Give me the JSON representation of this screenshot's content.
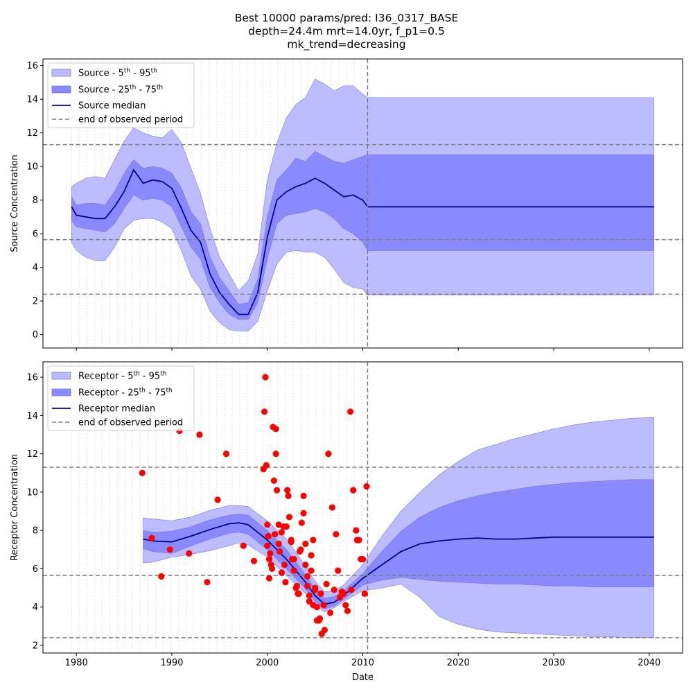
{
  "figure": {
    "title_lines": [
      "Best 10000 params/pred: I36_0317_BASE",
      "depth=24.4m mrt=14.0yr, f_p1=0.5",
      "mk_trend=decreasing"
    ]
  },
  "colors": {
    "band_outer": "#bcbcfe",
    "band_inner": "#8a8afe",
    "band_edge": "#6f6fe0",
    "median": "#00008b",
    "reference": "#7f7f7f",
    "observation": "#ff0000",
    "vertical_grid": "#d9d9d9"
  },
  "chart_data": [
    {
      "type": "area",
      "name": "source-panel",
      "xlabel": "",
      "ylabel": "Source Concentration",
      "xlim": [
        1976.5,
        2043.5
      ],
      "ylim": [
        -0.8,
        16.4
      ],
      "xticks": [
        1980,
        1990,
        2000,
        2010,
        2020,
        2030,
        2040
      ],
      "xtick_labels": [],
      "yticks": [
        0,
        2,
        4,
        6,
        8,
        10,
        12,
        14,
        16
      ],
      "ytick_labels": [
        "0",
        "2",
        "4",
        "6",
        "8",
        "10",
        "12",
        "14",
        "16"
      ],
      "vertical_grid": "dotted, about every 0.8 years from 1979.5 to 2010.5",
      "horizontal_reference_lines": [
        11.3,
        5.65,
        2.4
      ],
      "end_of_observed_period": 2010.5,
      "legend": {
        "placement": "upper-left",
        "entries": [
          {
            "base": "Source - 5",
            "sup1": "th",
            "mid": " - 95",
            "sup2": "th"
          },
          {
            "base": "Source - 25",
            "sup1": "th",
            "mid": " - 75",
            "sup2": "th"
          },
          {
            "base": "Source median",
            "sup1": "",
            "mid": "",
            "sup2": ""
          },
          {
            "base": "end of observed period",
            "sup1": "",
            "mid": "",
            "sup2": ""
          }
        ]
      },
      "x": [
        1979.5,
        1980,
        1981,
        1982,
        1983,
        1984,
        1985,
        1986,
        1987,
        1988,
        1989,
        1990,
        1991,
        1992,
        1993,
        1994,
        1995,
        1996,
        1997,
        1998,
        1999,
        2000,
        2001,
        2002,
        2003,
        2004,
        2005,
        2006,
        2007,
        2008,
        2009,
        2010,
        2010.5,
        2040.5
      ],
      "series": [
        {
          "name": "Source median",
          "values": [
            7.6,
            7.1,
            7.0,
            6.9,
            6.9,
            7.6,
            8.5,
            9.8,
            9.0,
            9.2,
            9.1,
            8.7,
            7.5,
            6.2,
            5.5,
            3.6,
            2.5,
            1.8,
            1.2,
            1.2,
            2.5,
            5.8,
            8.0,
            8.5,
            8.8,
            9.0,
            9.3,
            9.0,
            8.6,
            8.2,
            8.3,
            8.0,
            7.6,
            7.6
          ]
        },
        {
          "name": "Source - 25th - 75th lower",
          "values": [
            6.8,
            6.4,
            6.3,
            6.2,
            6.1,
            6.6,
            7.5,
            8.3,
            8.0,
            8.1,
            8.0,
            7.6,
            6.4,
            5.2,
            4.5,
            2.8,
            1.9,
            1.2,
            0.9,
            0.9,
            1.9,
            4.5,
            6.6,
            7.1,
            7.2,
            7.3,
            7.5,
            7.3,
            6.9,
            6.3,
            6.0,
            5.5,
            5.0,
            5.0
          ]
        },
        {
          "name": "Source - 25th - 75th upper",
          "values": [
            8.2,
            7.7,
            7.8,
            7.8,
            7.7,
            8.5,
            9.6,
            10.4,
            9.9,
            10.0,
            9.9,
            9.6,
            8.7,
            7.3,
            6.6,
            4.6,
            3.4,
            2.6,
            1.8,
            1.9,
            3.3,
            7.0,
            9.2,
            9.8,
            10.5,
            10.3,
            10.9,
            10.6,
            10.3,
            10.2,
            10.4,
            10.6,
            10.7,
            10.7
          ]
        },
        {
          "name": "Source - 5th - 95th lower",
          "values": [
            5.5,
            5.0,
            4.6,
            4.4,
            4.4,
            5.2,
            6.3,
            6.8,
            6.9,
            6.9,
            6.7,
            6.3,
            5.0,
            3.5,
            2.7,
            1.4,
            0.7,
            0.3,
            0.2,
            0.2,
            0.8,
            2.6,
            4.2,
            4.9,
            5.0,
            4.9,
            4.9,
            4.6,
            3.9,
            3.1,
            2.8,
            2.7,
            2.35,
            2.35
          ]
        },
        {
          "name": "Source - 5th - 95th upper",
          "values": [
            8.8,
            9.0,
            9.3,
            9.4,
            9.3,
            10.4,
            11.5,
            12.3,
            12.0,
            11.8,
            11.7,
            12.2,
            11.4,
            9.9,
            8.4,
            6.3,
            4.6,
            3.6,
            2.6,
            3.2,
            4.8,
            9.2,
            11.4,
            12.9,
            13.7,
            14.1,
            15.2,
            14.9,
            14.5,
            14.8,
            14.8,
            14.3,
            14.1,
            14.1
          ]
        }
      ]
    },
    {
      "type": "area",
      "name": "receptor-panel",
      "xlabel": "Date",
      "ylabel": "Receptor Concentration",
      "xlim": [
        1976.5,
        2043.5
      ],
      "ylim": [
        1.6,
        16.8
      ],
      "xticks": [
        1980,
        1990,
        2000,
        2010,
        2020,
        2030,
        2040
      ],
      "xtick_labels": [
        "1980",
        "1990",
        "2000",
        "2010",
        "2020",
        "2030",
        "2040"
      ],
      "yticks": [
        2,
        4,
        6,
        8,
        10,
        12,
        14,
        16
      ],
      "ytick_labels": [
        "2",
        "4",
        "6",
        "8",
        "10",
        "12",
        "14",
        "16"
      ],
      "vertical_grid": "dotted, about every 0.8 years from 1979.5 to 2010.5",
      "horizontal_reference_lines": [
        11.3,
        5.65,
        2.4
      ],
      "end_of_observed_period": 2010.5,
      "legend": {
        "placement": "upper-left",
        "entries": [
          {
            "base": "Receptor - 5",
            "sup1": "th",
            "mid": " - 95",
            "sup2": "th"
          },
          {
            "base": "Receptor - 25",
            "sup1": "th",
            "mid": " - 75",
            "sup2": "th"
          },
          {
            "base": "Receptor median",
            "sup1": "",
            "mid": "",
            "sup2": ""
          },
          {
            "base": "end of observed period",
            "sup1": "",
            "mid": "",
            "sup2": ""
          }
        ]
      },
      "x": [
        1987,
        1988,
        1990,
        1992,
        1994,
        1996,
        1997,
        1998,
        2000,
        2002,
        2004,
        2005,
        2006,
        2007,
        2008,
        2010,
        2012,
        2014,
        2016,
        2018,
        2020,
        2022,
        2024,
        2026,
        2028,
        2030,
        2032,
        2034,
        2036,
        2038,
        2040.5
      ],
      "series": [
        {
          "name": "Receptor median",
          "values": [
            7.55,
            7.45,
            7.4,
            7.7,
            8.05,
            8.35,
            8.4,
            8.3,
            7.5,
            6.5,
            5.3,
            4.6,
            4.15,
            4.25,
            4.6,
            5.5,
            6.2,
            6.9,
            7.3,
            7.45,
            7.55,
            7.6,
            7.55,
            7.55,
            7.6,
            7.65,
            7.65,
            7.65,
            7.65,
            7.65,
            7.65
          ]
        },
        {
          "name": "Receptor - 25th - 75th lower",
          "values": [
            7.05,
            6.9,
            6.8,
            7.2,
            7.55,
            7.85,
            7.9,
            7.8,
            7.0,
            6.0,
            4.95,
            4.3,
            3.9,
            4.05,
            4.4,
            5.15,
            5.4,
            5.55,
            5.45,
            5.35,
            5.3,
            5.25,
            5.2,
            5.2,
            5.15,
            5.1,
            5.1,
            5.05,
            5.05,
            5.05,
            5.05
          ]
        },
        {
          "name": "Receptor - 25th - 75th upper",
          "values": [
            8.0,
            7.9,
            7.95,
            8.2,
            8.55,
            8.8,
            8.85,
            8.8,
            8.0,
            7.0,
            5.7,
            4.95,
            4.45,
            4.55,
            4.85,
            5.75,
            6.9,
            7.95,
            8.7,
            9.2,
            9.55,
            9.8,
            10.0,
            10.15,
            10.3,
            10.4,
            10.5,
            10.55,
            10.6,
            10.65,
            10.65
          ]
        },
        {
          "name": "Receptor - 5th - 95th lower",
          "values": [
            6.3,
            6.35,
            6.6,
            6.75,
            6.95,
            7.2,
            7.35,
            7.25,
            6.6,
            5.65,
            4.7,
            4.1,
            3.75,
            3.95,
            4.3,
            4.85,
            5.0,
            5.2,
            4.5,
            3.5,
            3.1,
            2.85,
            2.7,
            2.65,
            2.6,
            2.55,
            2.5,
            2.45,
            2.45,
            2.4,
            2.4
          ]
        },
        {
          "name": "Receptor - 5th - 95th upper",
          "values": [
            8.65,
            8.6,
            8.5,
            8.7,
            9.05,
            9.3,
            9.3,
            9.25,
            8.5,
            7.55,
            6.15,
            5.35,
            4.8,
            4.85,
            5.15,
            6.2,
            7.7,
            9.0,
            10.0,
            10.9,
            11.6,
            12.2,
            12.5,
            12.8,
            13.05,
            13.3,
            13.5,
            13.65,
            13.75,
            13.85,
            13.9
          ]
        }
      ],
      "observations": {
        "x": [
          1986.9,
          1987.9,
          1988.9,
          1989.8,
          1990.8,
          1991.8,
          1992.9,
          1993.7,
          1994.8,
          1995.7,
          1997.5,
          1998.6,
          1999.6,
          1999.7,
          1999.8,
          1999.9,
          2000.0,
          2000.1,
          2000.2,
          2000.3,
          2000.5,
          2000.7,
          2000.8,
          2000.9,
          2001.0,
          2001.2,
          2001.3,
          2001.5,
          2001.7,
          2001.9,
          2002.1,
          2002.3,
          2002.5,
          2002.6,
          2002.8,
          2003.0,
          2003.2,
          2003.4,
          2003.6,
          2003.8,
          2004.0,
          2004.2,
          2004.4,
          2004.6,
          2004.8,
          2005.0,
          2005.2,
          2005.5,
          2005.7,
          2006.0,
          2006.4,
          2006.8,
          2007.2,
          2007.6,
          2008.0,
          2008.4,
          2008.7,
          2009.0,
          2009.3,
          2009.6,
          2010.0,
          2010.4,
          2000.0,
          2000.2,
          2000.4,
          2000.6,
          2000.9,
          2001.2,
          2001.5,
          2001.8,
          2002.0,
          2002.2,
          2002.5,
          2002.8,
          2003.1,
          2003.3,
          2003.5,
          2003.8,
          2004.0,
          2004.2,
          2004.4,
          2004.6,
          2004.8,
          2005.0,
          2005.2,
          2005.4,
          2005.6,
          2005.9,
          2006.2,
          2006.6,
          2007.0,
          2007.4,
          2007.8,
          2008.2,
          2008.8,
          2009.4,
          2009.8,
          2010.2
        ],
        "y": [
          11.0,
          7.6,
          5.6,
          7.0,
          13.2,
          6.8,
          13.0,
          5.3,
          9.6,
          12.0,
          7.2,
          6.4,
          11.2,
          14.2,
          16.0,
          11.4,
          8.3,
          7.7,
          6.5,
          6.8,
          6.0,
          10.6,
          7.8,
          13.3,
          10.1,
          8.3,
          6.9,
          5.8,
          8.2,
          5.3,
          10.1,
          8.7,
          7.5,
          6.5,
          5.9,
          5.0,
          4.7,
          6.9,
          8.4,
          8.9,
          6.2,
          5.1,
          4.3,
          5.9,
          4.1,
          5.0,
          3.3,
          3.4,
          2.6,
          2.8,
          12.0,
          9.2,
          7.8,
          4.5,
          4.7,
          3.8,
          14.2,
          10.1,
          8.0,
          7.5,
          6.5,
          10.3,
          7.2,
          5.5,
          6.2,
          13.4,
          12.0,
          7.3,
          7.9,
          6.2,
          8.2,
          9.8,
          7.4,
          6.5,
          5.1,
          4.7,
          7.0,
          9.8,
          7.3,
          5.6,
          4.6,
          6.7,
          7.5,
          4.9,
          4.0,
          3.3,
          4.7,
          4.1,
          5.2,
          3.7,
          4.9,
          5.9,
          4.8,
          4.1,
          4.9,
          7.5,
          6.5,
          4.7
        ]
      }
    }
  ]
}
